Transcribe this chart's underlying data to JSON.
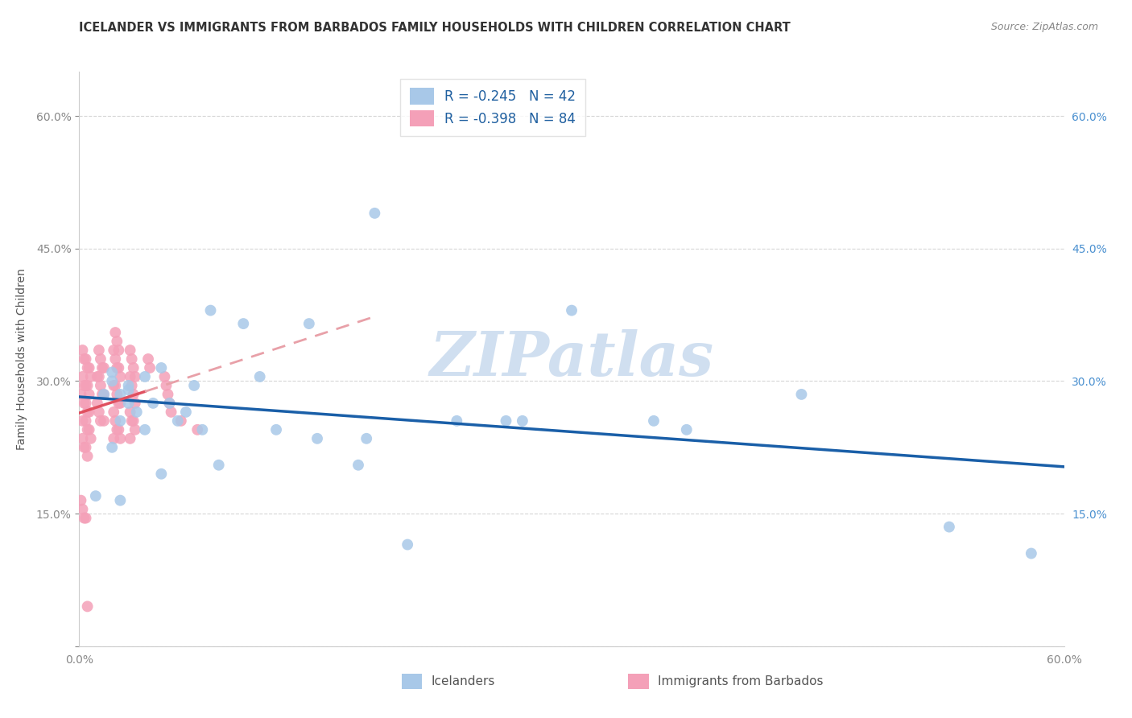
{
  "title": "ICELANDER VS IMMIGRANTS FROM BARBADOS FAMILY HOUSEHOLDS WITH CHILDREN CORRELATION CHART",
  "source": "Source: ZipAtlas.com",
  "ylabel": "Family Households with Children",
  "legend_r_blue": "R = -0.245",
  "legend_n_blue": "N = 42",
  "legend_r_pink": "R = -0.398",
  "legend_n_pink": "N = 84",
  "label_icelanders": "Icelanders",
  "label_barbados": "Immigrants from Barbados",
  "blue_scatter_color": "#a8c8e8",
  "pink_scatter_color": "#f4a0b8",
  "blue_line_color": "#1a5fa8",
  "pink_line_color": "#e05060",
  "pink_dash_color": "#e8a0a8",
  "watermark": "ZIPatlas",
  "watermark_color": "#d0dff0",
  "background_color": "#ffffff",
  "grid_color": "#cccccc",
  "right_tick_color": "#4a90d0",
  "left_tick_color": "#888888",
  "title_color": "#333333",
  "source_color": "#888888",
  "legend_text_color": "#2060a0",
  "ylabel_color": "#555555",
  "xlim": [
    0.0,
    0.6
  ],
  "ylim": [
    0.0,
    0.65
  ],
  "yticks": [
    0.0,
    0.15,
    0.3,
    0.45,
    0.6
  ],
  "xticks": [
    0.0,
    0.1,
    0.2,
    0.3,
    0.4,
    0.5,
    0.6
  ],
  "icelanders_x": [
    0.01,
    0.015,
    0.02,
    0.025,
    0.02,
    0.025,
    0.02,
    0.03,
    0.03,
    0.03,
    0.035,
    0.025,
    0.04,
    0.045,
    0.04,
    0.05,
    0.055,
    0.05,
    0.06,
    0.065,
    0.07,
    0.075,
    0.08,
    0.085,
    0.1,
    0.11,
    0.12,
    0.14,
    0.145,
    0.17,
    0.175,
    0.18,
    0.2,
    0.23,
    0.26,
    0.27,
    0.3,
    0.35,
    0.37,
    0.44,
    0.53,
    0.58
  ],
  "icelanders_y": [
    0.17,
    0.285,
    0.3,
    0.285,
    0.31,
    0.255,
    0.225,
    0.295,
    0.29,
    0.275,
    0.265,
    0.165,
    0.305,
    0.275,
    0.245,
    0.315,
    0.275,
    0.195,
    0.255,
    0.265,
    0.295,
    0.245,
    0.38,
    0.205,
    0.365,
    0.305,
    0.245,
    0.365,
    0.235,
    0.205,
    0.235,
    0.49,
    0.115,
    0.255,
    0.255,
    0.255,
    0.38,
    0.255,
    0.245,
    0.285,
    0.135,
    0.105
  ],
  "barbados_x": [
    0.002,
    0.003,
    0.004,
    0.005,
    0.006,
    0.007,
    0.002,
    0.003,
    0.004,
    0.005,
    0.006,
    0.001,
    0.003,
    0.004,
    0.005,
    0.006,
    0.002,
    0.004,
    0.005,
    0.006,
    0.007,
    0.002,
    0.003,
    0.004,
    0.005,
    0.001,
    0.002,
    0.003,
    0.004,
    0.005,
    0.012,
    0.013,
    0.014,
    0.015,
    0.011,
    0.012,
    0.013,
    0.014,
    0.015,
    0.011,
    0.012,
    0.013,
    0.015,
    0.022,
    0.023,
    0.024,
    0.021,
    0.022,
    0.023,
    0.024,
    0.025,
    0.021,
    0.022,
    0.023,
    0.024,
    0.025,
    0.021,
    0.022,
    0.023,
    0.024,
    0.025,
    0.021,
    0.031,
    0.032,
    0.033,
    0.034,
    0.031,
    0.032,
    0.033,
    0.034,
    0.031,
    0.032,
    0.033,
    0.034,
    0.031,
    0.042,
    0.043,
    0.052,
    0.053,
    0.054,
    0.055,
    0.056,
    0.062,
    0.072
  ],
  "barbados_y": [
    0.335,
    0.325,
    0.325,
    0.315,
    0.315,
    0.305,
    0.305,
    0.295,
    0.295,
    0.295,
    0.285,
    0.285,
    0.275,
    0.275,
    0.265,
    0.265,
    0.255,
    0.255,
    0.245,
    0.245,
    0.235,
    0.235,
    0.225,
    0.225,
    0.215,
    0.165,
    0.155,
    0.145,
    0.145,
    0.045,
    0.335,
    0.325,
    0.315,
    0.315,
    0.305,
    0.305,
    0.295,
    0.285,
    0.285,
    0.275,
    0.265,
    0.255,
    0.255,
    0.355,
    0.345,
    0.335,
    0.335,
    0.325,
    0.315,
    0.315,
    0.305,
    0.295,
    0.295,
    0.285,
    0.275,
    0.275,
    0.265,
    0.255,
    0.245,
    0.245,
    0.235,
    0.235,
    0.335,
    0.325,
    0.315,
    0.305,
    0.305,
    0.295,
    0.285,
    0.275,
    0.265,
    0.255,
    0.255,
    0.245,
    0.235,
    0.325,
    0.315,
    0.305,
    0.295,
    0.285,
    0.275,
    0.265,
    0.255,
    0.245
  ]
}
